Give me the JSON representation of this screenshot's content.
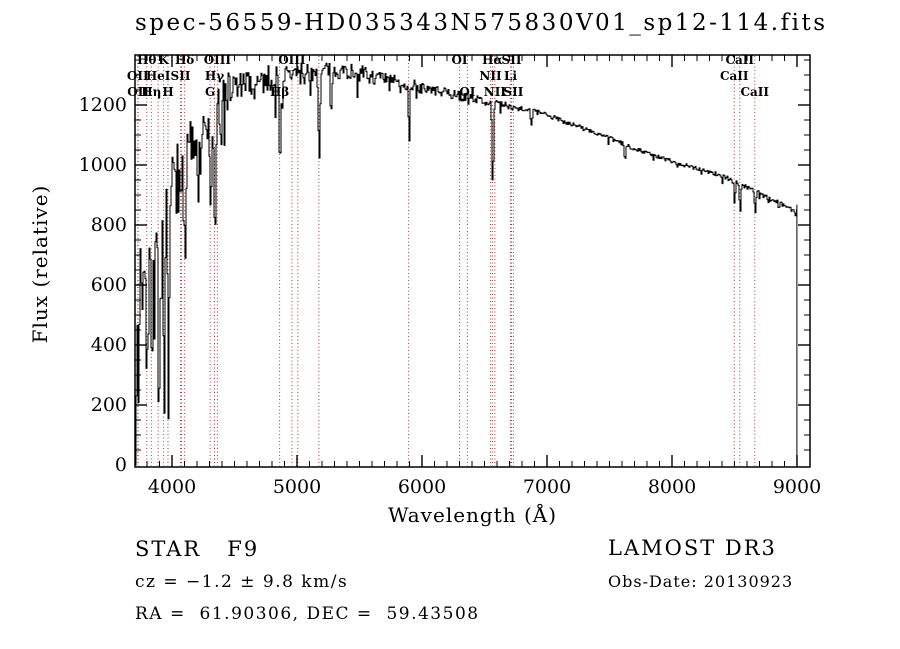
{
  "title": "spec-56559-HD035343N575830V01_sp12-114.fits",
  "footer": {
    "star_class_line": "STAR   F9",
    "cz_line": "cz = −1.2 ± 9.8 km/s",
    "radec_line": "RA =  61.90306, DEC =  59.43508",
    "survey": "LAMOST DR3",
    "obs_date_line": "Obs-Date: 20130923"
  },
  "chart_data": {
    "type": "line",
    "title": "spec-56559-HD035343N575830V01_sp12-114.fits",
    "xlabel": "Wavelength (Å)",
    "ylabel": "Flux (relative)",
    "xlim": [
      3704,
      9104
    ],
    "ylim": [
      0,
      1367
    ],
    "xticks": [
      4000,
      5000,
      6000,
      7000,
      8000,
      9000
    ],
    "yticks": [
      0,
      200,
      400,
      600,
      800,
      1000,
      1200
    ],
    "x_minor_step": 100,
    "y_minor_step": 50,
    "grid": false,
    "legend": "none",
    "spectrum_color": "#000000",
    "line_marker_color": "#9e4040",
    "spectral_lines": [
      {
        "label": "OII",
        "wl": 3726,
        "row": 2
      },
      {
        "label": "OII",
        "wl": 3729,
        "row": 3
      },
      {
        "label": "Hθ",
        "wl": 3798,
        "row": 1
      },
      {
        "label": "Hη",
        "wl": 3835,
        "row": 3
      },
      {
        "label": "HeI",
        "wl": 3889,
        "row": 2
      },
      {
        "label": "K",
        "wl": 3933,
        "row": 1
      },
      {
        "label": "H",
        "wl": 3968,
        "row": 3
      },
      {
        "label": "SII",
        "wl": 4068,
        "row": 2
      },
      {
        "label": "",
        "wl": 4076,
        "row": 2
      },
      {
        "label": "Hδ",
        "wl": 4101,
        "row": 1
      },
      {
        "label": "G",
        "wl": 4305,
        "row": 3
      },
      {
        "label": "Hγ",
        "wl": 4340,
        "row": 2
      },
      {
        "label": "OIII",
        "wl": 4363,
        "row": 1
      },
      {
        "label": "Hβ",
        "wl": 4861,
        "row": 3
      },
      {
        "label": "OIII",
        "wl": 4959,
        "row": 1
      },
      {
        "label": "",
        "wl": 5007,
        "row": 2
      },
      {
        "label": "",
        "wl": 5175,
        "row": 3
      },
      {
        "label": "",
        "wl": 5893,
        "row": 3
      },
      {
        "label": "OI",
        "wl": 6300,
        "row": 1
      },
      {
        "label": "OI",
        "wl": 6363,
        "row": 3
      },
      {
        "label": "NII",
        "wl": 6548,
        "row": 2
      },
      {
        "label": "Hα",
        "wl": 6563,
        "row": 1
      },
      {
        "label": "NII",
        "wl": 6583,
        "row": 3
      },
      {
        "label": "Li",
        "wl": 6708,
        "row": 2
      },
      {
        "label": "SII",
        "wl": 6716,
        "row": 1
      },
      {
        "label": "SII",
        "wl": 6731,
        "row": 3
      },
      {
        "label": "CaII",
        "wl": 8498,
        "row": 2
      },
      {
        "label": "CaII",
        "wl": 8542,
        "row": 1
      },
      {
        "label": "CaII",
        "wl": 8662,
        "row": 3
      }
    ],
    "continuum_anchors": [
      [
        3704,
        0
      ],
      [
        3706,
        620
      ],
      [
        3720,
        640
      ],
      [
        3745,
        680
      ],
      [
        3775,
        690
      ],
      [
        3820,
        720
      ],
      [
        3870,
        780
      ],
      [
        3920,
        830
      ],
      [
        3960,
        840
      ],
      [
        4000,
        940
      ],
      [
        4040,
        990
      ],
      [
        4090,
        1010
      ],
      [
        4140,
        1060
      ],
      [
        4200,
        1100
      ],
      [
        4260,
        1140
      ],
      [
        4330,
        1180
      ],
      [
        4400,
        1230
      ],
      [
        4470,
        1255
      ],
      [
        4550,
        1265
      ],
      [
        4650,
        1275
      ],
      [
        4750,
        1285
      ],
      [
        4850,
        1295
      ],
      [
        4950,
        1300
      ],
      [
        5050,
        1305
      ],
      [
        5150,
        1310
      ],
      [
        5250,
        1320
      ],
      [
        5350,
        1315
      ],
      [
        5450,
        1310
      ],
      [
        5550,
        1300
      ],
      [
        5650,
        1290
      ],
      [
        5750,
        1280
      ],
      [
        5850,
        1272
      ],
      [
        5950,
        1262
      ],
      [
        6050,
        1252
      ],
      [
        6150,
        1243
      ],
      [
        6250,
        1235
      ],
      [
        6350,
        1226
      ],
      [
        6450,
        1218
      ],
      [
        6550,
        1210
      ],
      [
        6650,
        1200
      ],
      [
        6750,
        1192
      ],
      [
        6850,
        1183
      ],
      [
        6950,
        1172
      ],
      [
        7050,
        1158
      ],
      [
        7150,
        1143
      ],
      [
        7250,
        1128
      ],
      [
        7350,
        1112
      ],
      [
        7450,
        1097
      ],
      [
        7550,
        1080
      ],
      [
        7650,
        1062
      ],
      [
        7750,
        1048
      ],
      [
        7850,
        1032
      ],
      [
        7950,
        1018
      ],
      [
        8050,
        1005
      ],
      [
        8150,
        995
      ],
      [
        8250,
        983
      ],
      [
        8350,
        970
      ],
      [
        8450,
        955
      ],
      [
        8550,
        935
      ],
      [
        8650,
        915
      ],
      [
        8750,
        893
      ],
      [
        8850,
        875
      ],
      [
        8930,
        858
      ],
      [
        8990,
        845
      ]
    ],
    "absorption_features": [
      [
        3727,
        430,
        6
      ],
      [
        3798,
        290,
        6
      ],
      [
        3835,
        420,
        6
      ],
      [
        3889,
        560,
        5
      ],
      [
        3933,
        610,
        7
      ],
      [
        3968,
        790,
        5
      ],
      [
        4068,
        220,
        6
      ],
      [
        4101,
        310,
        6
      ],
      [
        4227,
        160,
        5
      ],
      [
        4305,
        280,
        9
      ],
      [
        4340,
        430,
        7
      ],
      [
        4383,
        180,
        5
      ],
      [
        4861,
        310,
        6
      ],
      [
        5175,
        290,
        7
      ],
      [
        5270,
        140,
        6
      ],
      [
        5893,
        200,
        5
      ],
      [
        6563,
        290,
        6
      ],
      [
        6870,
        45,
        5
      ],
      [
        7620,
        55,
        5
      ],
      [
        8498,
        75,
        5
      ],
      [
        8542,
        105,
        5
      ],
      [
        8662,
        85,
        5
      ]
    ],
    "noise_bands": [
      [
        3704,
        3960,
        110
      ],
      [
        3960,
        4200,
        90
      ],
      [
        4200,
        4500,
        70
      ],
      [
        4500,
        4800,
        45
      ],
      [
        4800,
        5100,
        40
      ],
      [
        5100,
        5600,
        28
      ],
      [
        5600,
        6000,
        22
      ],
      [
        6000,
        6400,
        16
      ],
      [
        6400,
        6800,
        12
      ],
      [
        6800,
        7400,
        8
      ],
      [
        7400,
        8300,
        7
      ],
      [
        8300,
        9001,
        8
      ]
    ],
    "noise_seed": 7,
    "end_drop_wl": 9000
  }
}
